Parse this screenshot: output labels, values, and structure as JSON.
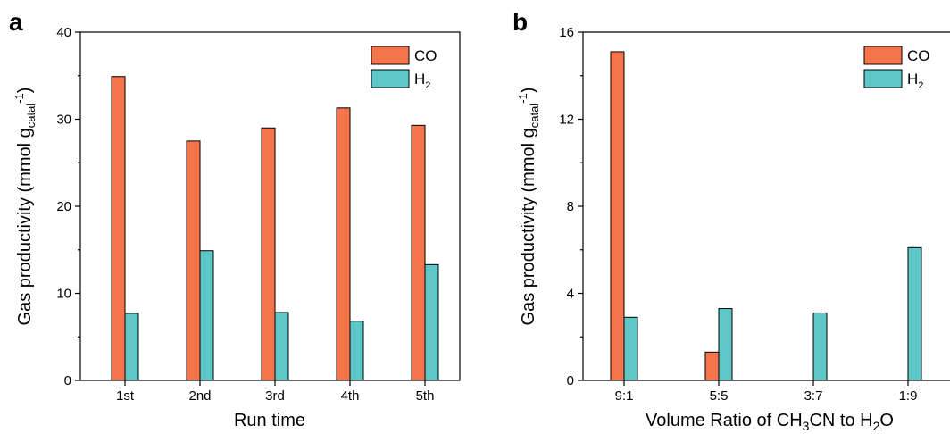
{
  "colors": {
    "CO": "#F4754B",
    "H2": "#5EC8C8"
  },
  "chart_data": [
    {
      "type": "bar",
      "panel_label": "a",
      "categories": [
        "1st",
        "2nd",
        "3rd",
        "4th",
        "5th"
      ],
      "series": [
        {
          "name": "CO",
          "values": [
            34.9,
            27.5,
            29.0,
            31.3,
            29.3
          ]
        },
        {
          "name": "H2",
          "values": [
            7.7,
            14.9,
            7.8,
            6.8,
            13.3
          ]
        }
      ],
      "legend": {
        "co": "CO",
        "h2_main": "H",
        "h2_sub": "2"
      },
      "xlabel": "Run time",
      "ylabel": {
        "main": "Gas productivity (mmol g",
        "sub": "catal",
        "sup": "-1",
        "close": ")"
      },
      "ylim": [
        0,
        40
      ],
      "yticks": [
        0,
        10,
        20,
        30,
        40
      ],
      "ytick_labels": [
        "0",
        "10",
        "20",
        "30",
        "40"
      ],
      "legend_position": "top-right",
      "grid": false
    },
    {
      "type": "bar",
      "panel_label": "b",
      "categories": [
        "9:1",
        "5:5",
        "3:7",
        "1:9"
      ],
      "series": [
        {
          "name": "CO",
          "values": [
            15.1,
            1.3,
            0,
            0
          ]
        },
        {
          "name": "H2",
          "values": [
            2.9,
            3.3,
            3.1,
            6.1
          ]
        }
      ],
      "legend": {
        "co": "CO",
        "h2_main": "H",
        "h2_sub": "2"
      },
      "xlabel": {
        "p1": "Volume Ratio of CH",
        "sub1": "3",
        "p2": "CN to H",
        "sub2": "2",
        "p3": "O"
      },
      "ylabel": {
        "main": "Gas productivity (mmol g",
        "sub": "catal",
        "sup": "-1",
        "close": ")"
      },
      "ylim": [
        0,
        16
      ],
      "yticks": [
        0,
        4,
        8,
        12,
        16
      ],
      "ytick_labels": [
        "0",
        "4",
        "8",
        "12",
        "16"
      ],
      "legend_position": "top-right",
      "grid": false
    }
  ]
}
